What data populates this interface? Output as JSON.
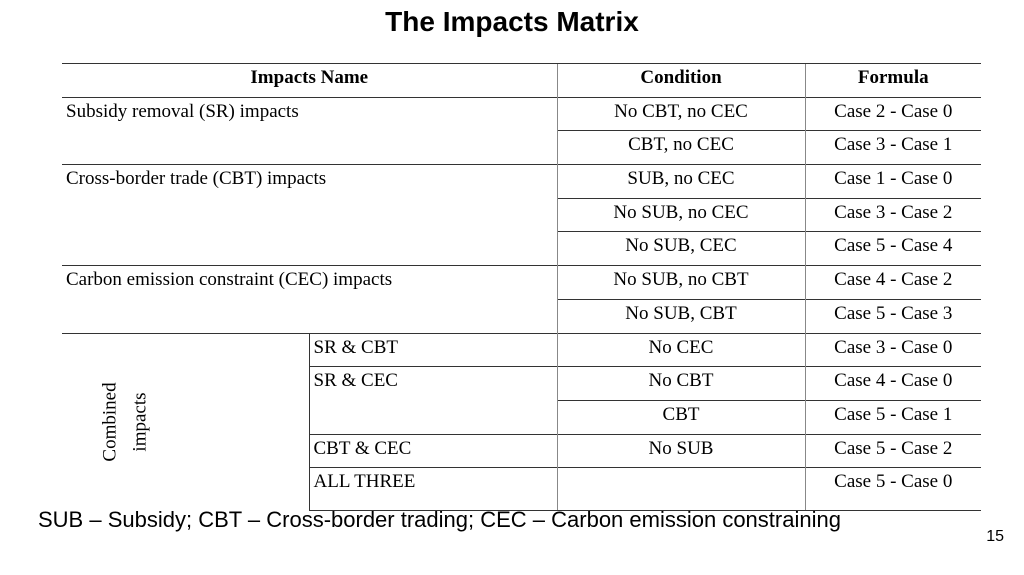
{
  "header": {
    "title": "The Impacts Matrix"
  },
  "table": {
    "columns": [
      "Impacts Name",
      "Condition",
      "Formula"
    ],
    "groups": [
      {
        "name": "Subsidy removal (SR) impacts",
        "rows": [
          {
            "condition": "No CBT, no CEC",
            "formula": "Case 2 - Case 0"
          },
          {
            "condition": "CBT, no CEC",
            "formula": "Case 3 - Case 1"
          }
        ]
      },
      {
        "name": "Cross-border trade (CBT) impacts",
        "rows": [
          {
            "condition": "SUB, no CEC",
            "formula": "Case 1 - Case 0"
          },
          {
            "condition": "No SUB, no CEC",
            "formula": "Case 3 - Case 2"
          },
          {
            "condition": "No SUB, CEC",
            "formula": "Case 5 - Case 4"
          }
        ]
      },
      {
        "name": "Carbon emission constraint (CEC) impacts",
        "rows": [
          {
            "condition": "No SUB, no CBT",
            "formula": "Case 4 - Case 2"
          },
          {
            "condition": "No SUB, CBT",
            "formula": "Case 5 - Case 3"
          }
        ]
      }
    ],
    "combined": {
      "label": "Combined impacts",
      "items": [
        {
          "name": "SR & CBT",
          "rows": [
            {
              "condition": "No CEC",
              "formula": "Case 3 - Case 0"
            }
          ]
        },
        {
          "name": "SR & CEC",
          "rows": [
            {
              "condition": "No CBT",
              "formula": "Case 4 - Case 0"
            },
            {
              "condition": "CBT",
              "formula": "Case 5 - Case 1"
            }
          ]
        },
        {
          "name": "CBT & CEC",
          "rows": [
            {
              "condition": "No SUB",
              "formula": "Case 5 - Case 2"
            }
          ]
        },
        {
          "name": "ALL THREE",
          "rows": [
            {
              "formula": "Case 5 - Case 0"
            }
          ]
        }
      ]
    }
  },
  "footnote": "SUB – Subsidy; CBT – Cross-border trading; CEC – Carbon emission constraining",
  "page_number": "15"
}
